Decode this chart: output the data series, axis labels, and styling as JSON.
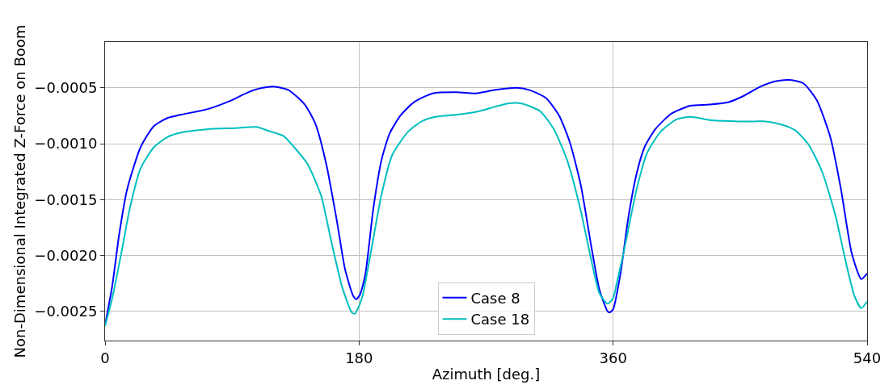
{
  "chart_data": {
    "type": "line",
    "xlabel": "Azimuth [deg.]",
    "ylabel": "Non-Dimensional Integrated Z-Force on Boom",
    "xlim": [
      0,
      540
    ],
    "xticks": [
      0,
      180,
      360,
      540
    ],
    "ylim": [
      -0.00276,
      -9e-05
    ],
    "yticks": [
      {
        "value": -0.0025,
        "label": "−0.0025"
      },
      {
        "value": -0.002,
        "label": "−0.0020"
      },
      {
        "value": -0.0015,
        "label": "−0.0015"
      },
      {
        "value": -0.001,
        "label": "−0.0010"
      },
      {
        "value": -0.0005,
        "label": "−0.0005"
      }
    ],
    "grid": true,
    "legend": "bottom",
    "line_style": "solid",
    "marker": "none",
    "series": [
      {
        "name": "Case 8",
        "color": "#0000ff",
        "x": [
          0,
          5.1,
          9.9,
          15.6,
          25.2,
          34.7,
          44.2,
          53.8,
          72.8,
          88.1,
          101.4,
          111,
          120.5,
          130,
          141.5,
          149,
          156.7,
          164.4,
          170,
          175.8,
          178,
          180.6,
          184.4,
          190.1,
          195.8,
          201.6,
          209.2,
          218.7,
          232.1,
          249.3,
          262.6,
          276,
          291.3,
          300.8,
          312.3,
          321.8,
          329.4,
          337.1,
          344.7,
          350.4,
          356.1,
          357.5,
          360,
          365.1,
          370.9,
          376.6,
          382.3,
          389.9,
          401.4,
          414.7,
          428.1,
          441.4,
          452.9,
          464.3,
          475.7,
          485.3,
          494.8,
          504.3,
          513.9,
          521.5,
          529.1,
          535.8,
          540
        ],
        "values": [
          -0.00262,
          -0.00227,
          -0.00182,
          -0.00141,
          -0.00103,
          -0.00084,
          -0.00077,
          -0.00074,
          -0.00069,
          -0.00062,
          -0.00054,
          -0.000502,
          -0.00049,
          -0.00052,
          -0.00065,
          -0.00082,
          -0.00118,
          -0.0017,
          -0.00212,
          -0.00236,
          -0.00239,
          -0.00235,
          -0.00217,
          -0.00158,
          -0.00115,
          -0.00091,
          -0.00075,
          -0.00063,
          -0.00055,
          -0.00054,
          -0.00055,
          -0.00052,
          -0.0005,
          -0.00052,
          -0.00059,
          -0.00075,
          -0.00099,
          -0.00137,
          -0.00193,
          -0.00231,
          -0.0025,
          -0.00251,
          -0.00248,
          -0.00217,
          -0.00165,
          -0.00127,
          -0.00103,
          -0.00087,
          -0.00073,
          -0.00066,
          -0.00065,
          -0.00063,
          -0.00057,
          -0.00049,
          -0.00044,
          -0.00043,
          -0.00046,
          -0.00061,
          -0.00094,
          -0.00141,
          -0.00198,
          -0.00221,
          -0.00216
        ]
      },
      {
        "name": "Case 18",
        "color": "#00bfbf",
        "x": [
          0,
          5.1,
          11.8,
          17.5,
          25.2,
          34.7,
          44.2,
          53.8,
          72.8,
          91.9,
          107.2,
          114.8,
          126.3,
          133.9,
          143.4,
          153,
          160.6,
          168.2,
          174.9,
          177,
          180,
          182.5,
          188.2,
          195.8,
          203.5,
          214.9,
          224.4,
          234,
          249.3,
          264.5,
          276,
          285.5,
          295.1,
          308.4,
          318,
          327.5,
          337.1,
          344.7,
          350.4,
          356.1,
          360,
          362.7,
          367,
          376.6,
          384.2,
          393.8,
          405.2,
          414.7,
          429.9,
          449,
          460.5,
          468.1,
          479.5,
          489.1,
          498.6,
          508.1,
          517.7,
          525.3,
          531,
          535.8,
          540
        ],
        "values": [
          -0.00263,
          -0.00238,
          -0.00196,
          -0.00158,
          -0.00122,
          -0.00103,
          -0.00094,
          -0.0009,
          -0.00087,
          -0.00086,
          -0.00085,
          -0.00088,
          -0.00093,
          -0.00103,
          -0.00118,
          -0.00146,
          -0.00189,
          -0.00229,
          -0.00251,
          -0.00252,
          -0.00245,
          -0.00236,
          -0.00198,
          -0.00146,
          -0.0011,
          -0.00089,
          -0.0008,
          -0.00076,
          -0.00074,
          -0.00071,
          -0.00067,
          -0.00064,
          -0.00064,
          -0.00071,
          -0.00087,
          -0.00115,
          -0.0016,
          -0.00205,
          -0.00234,
          -0.00243,
          -0.00238,
          -0.00224,
          -0.002,
          -0.00141,
          -0.00108,
          -0.00089,
          -0.00078,
          -0.00076,
          -0.00079,
          -0.0008,
          -0.0008,
          -0.0008,
          -0.00083,
          -0.00088,
          -0.00101,
          -0.00125,
          -0.00165,
          -0.00208,
          -0.00236,
          -0.00247,
          -0.00241
        ]
      }
    ]
  }
}
